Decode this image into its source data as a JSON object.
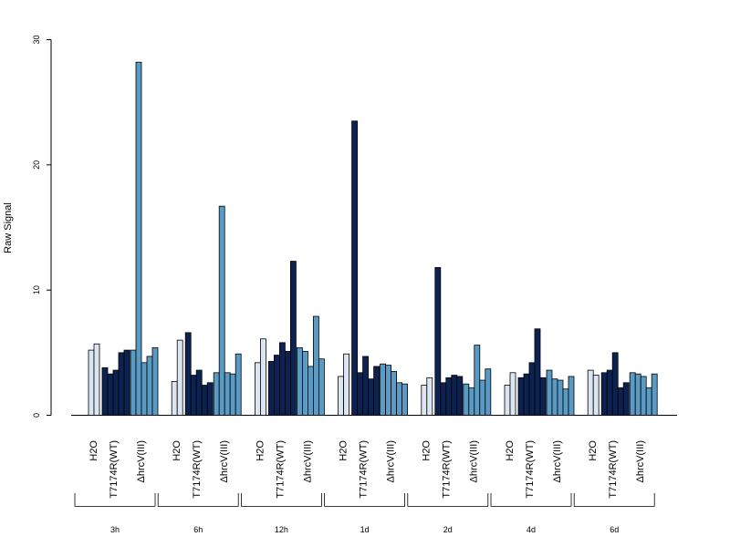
{
  "chart_data": {
    "type": "bar",
    "title": "",
    "xlabel": "",
    "ylabel": "Raw Signal",
    "ylim": [
      0,
      30
    ],
    "yticks": [
      0,
      10,
      20,
      30
    ],
    "grid": false,
    "legend": "none",
    "timepoints": [
      "3h",
      "6h",
      "12h",
      "1d",
      "2d",
      "4d",
      "6d"
    ],
    "series": [
      {
        "name": "H2O",
        "label": "H2O",
        "color": "#dce6f2",
        "values": [
          [
            5.2,
            5.7
          ],
          [
            2.7,
            6.0
          ],
          [
            4.2,
            6.1
          ],
          [
            3.1,
            4.9
          ],
          [
            2.4,
            3.0
          ],
          [
            2.4,
            3.4
          ],
          [
            3.6,
            3.2
          ]
        ]
      },
      {
        "name": "T7174R(WT)",
        "label": "T7174R(WT)",
        "color": "#0c2352",
        "values": [
          [
            3.8,
            3.3,
            3.6,
            5.0,
            5.2
          ],
          [
            6.6,
            3.2,
            3.6,
            2.4,
            2.6
          ],
          [
            4.3,
            4.8,
            5.8,
            5.1,
            12.3
          ],
          [
            23.5,
            3.4,
            4.7,
            2.9,
            3.9
          ],
          [
            11.8,
            2.6,
            3.0,
            3.2,
            3.1
          ],
          [
            3.0,
            3.3,
            4.2,
            6.9,
            3.0
          ],
          [
            3.4,
            3.6,
            5.0,
            2.2,
            2.6
          ]
        ]
      },
      {
        "name": "ΔhrcV(III)",
        "label": "ΔhrcV(III)",
        "color": "#5a9bc6",
        "values": [
          [
            5.2,
            28.2,
            4.2,
            4.7,
            5.4
          ],
          [
            3.4,
            16.7,
            3.4,
            3.3,
            4.9
          ],
          [
            5.4,
            5.1,
            3.9,
            7.9,
            4.5
          ],
          [
            4.1,
            4.0,
            3.5,
            2.6,
            2.5
          ],
          [
            2.5,
            2.2,
            5.6,
            2.8,
            3.7
          ],
          [
            3.6,
            2.9,
            2.8,
            2.1,
            3.1
          ],
          [
            3.4,
            3.3,
            3.1,
            2.2,
            3.3
          ]
        ]
      }
    ]
  }
}
